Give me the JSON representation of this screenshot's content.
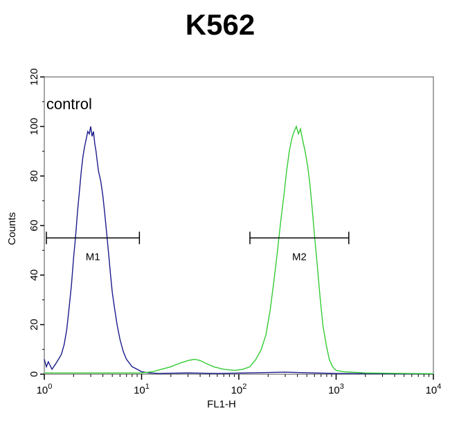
{
  "chart_data": {
    "type": "line",
    "title": "K562",
    "xlabel": "FL1-H",
    "ylabel": "Counts",
    "xscale": "log",
    "xlim": [
      1,
      10000
    ],
    "ylim": [
      0,
      120
    ],
    "grid": false,
    "legend": "none",
    "x_ticks": [
      {
        "value": 1,
        "base": "10",
        "exp": "0"
      },
      {
        "value": 10,
        "base": "10",
        "exp": "1"
      },
      {
        "value": 100,
        "base": "10",
        "exp": "2"
      },
      {
        "value": 1000,
        "base": "10",
        "exp": "3"
      },
      {
        "value": 10000,
        "base": "10",
        "exp": "4"
      }
    ],
    "y_ticks": [
      "0",
      "20",
      "40",
      "60",
      "80",
      "100",
      "120"
    ],
    "annotations": [
      {
        "text": "control",
        "x": 1.8,
        "y": 107
      }
    ],
    "markers": [
      {
        "label": "M1",
        "x_start": 1.05,
        "x_end": 9.5,
        "y": 55
      },
      {
        "label": "M2",
        "x_start": 130,
        "x_end": 1350,
        "y": 55
      }
    ],
    "series": [
      {
        "color": "#1a1a8c",
        "points": [
          [
            1.0,
            6
          ],
          [
            1.05,
            3
          ],
          [
            1.1,
            5
          ],
          [
            1.2,
            2
          ],
          [
            1.3,
            4
          ],
          [
            1.4,
            6
          ],
          [
            1.5,
            8
          ],
          [
            1.6,
            12
          ],
          [
            1.7,
            18
          ],
          [
            1.8,
            27
          ],
          [
            1.9,
            36
          ],
          [
            2.0,
            47
          ],
          [
            2.1,
            56
          ],
          [
            2.2,
            66
          ],
          [
            2.3,
            74
          ],
          [
            2.4,
            82
          ],
          [
            2.5,
            88
          ],
          [
            2.6,
            92
          ],
          [
            2.7,
            95
          ],
          [
            2.8,
            98
          ],
          [
            2.9,
            97
          ],
          [
            3.0,
            100
          ],
          [
            3.1,
            96
          ],
          [
            3.2,
            98
          ],
          [
            3.3,
            93
          ],
          [
            3.4,
            90
          ],
          [
            3.5,
            86
          ],
          [
            3.6,
            82
          ],
          [
            3.8,
            78
          ],
          [
            4.0,
            72
          ],
          [
            4.2,
            64
          ],
          [
            4.4,
            56
          ],
          [
            4.6,
            48
          ],
          [
            4.8,
            40
          ],
          [
            5.0,
            33
          ],
          [
            5.3,
            26
          ],
          [
            5.6,
            20
          ],
          [
            6.0,
            14
          ],
          [
            6.5,
            9
          ],
          [
            7.0,
            6
          ],
          [
            8.0,
            3
          ],
          [
            9.0,
            2
          ],
          [
            10.0,
            1
          ],
          [
            12,
            0.5
          ],
          [
            15,
            0.3
          ],
          [
            30,
            0.5
          ],
          [
            60,
            0.3
          ],
          [
            120,
            0.5
          ],
          [
            300,
            0.8
          ],
          [
            500,
            0.6
          ],
          [
            1000,
            0.3
          ],
          [
            3000,
            0.2
          ],
          [
            10000,
            0.1
          ]
        ]
      },
      {
        "color": "#33cc33",
        "points": [
          [
            1.0,
            0.5
          ],
          [
            3.0,
            0.5
          ],
          [
            10,
            0.5
          ],
          [
            13,
            1
          ],
          [
            16,
            2
          ],
          [
            20,
            3
          ],
          [
            25,
            4.5
          ],
          [
            30,
            5.5
          ],
          [
            35,
            6
          ],
          [
            40,
            5.5
          ],
          [
            45,
            4.5
          ],
          [
            55,
            3
          ],
          [
            70,
            2
          ],
          [
            90,
            1.5
          ],
          [
            110,
            2
          ],
          [
            130,
            3
          ],
          [
            150,
            6
          ],
          [
            170,
            10
          ],
          [
            190,
            16
          ],
          [
            210,
            26
          ],
          [
            230,
            38
          ],
          [
            250,
            50
          ],
          [
            270,
            62
          ],
          [
            290,
            72
          ],
          [
            310,
            82
          ],
          [
            330,
            90
          ],
          [
            350,
            95
          ],
          [
            370,
            98
          ],
          [
            390,
            100
          ],
          [
            410,
            97
          ],
          [
            430,
            99
          ],
          [
            450,
            95
          ],
          [
            480,
            90
          ],
          [
            510,
            84
          ],
          [
            540,
            76
          ],
          [
            570,
            66
          ],
          [
            600,
            56
          ],
          [
            640,
            44
          ],
          [
            680,
            32
          ],
          [
            730,
            20
          ],
          [
            790,
            12
          ],
          [
            850,
            6
          ],
          [
            920,
            3
          ],
          [
            1000,
            1.5
          ],
          [
            1200,
            1
          ],
          [
            2000,
            0.5
          ],
          [
            5000,
            0.3
          ],
          [
            10000,
            0.2
          ]
        ]
      }
    ]
  }
}
